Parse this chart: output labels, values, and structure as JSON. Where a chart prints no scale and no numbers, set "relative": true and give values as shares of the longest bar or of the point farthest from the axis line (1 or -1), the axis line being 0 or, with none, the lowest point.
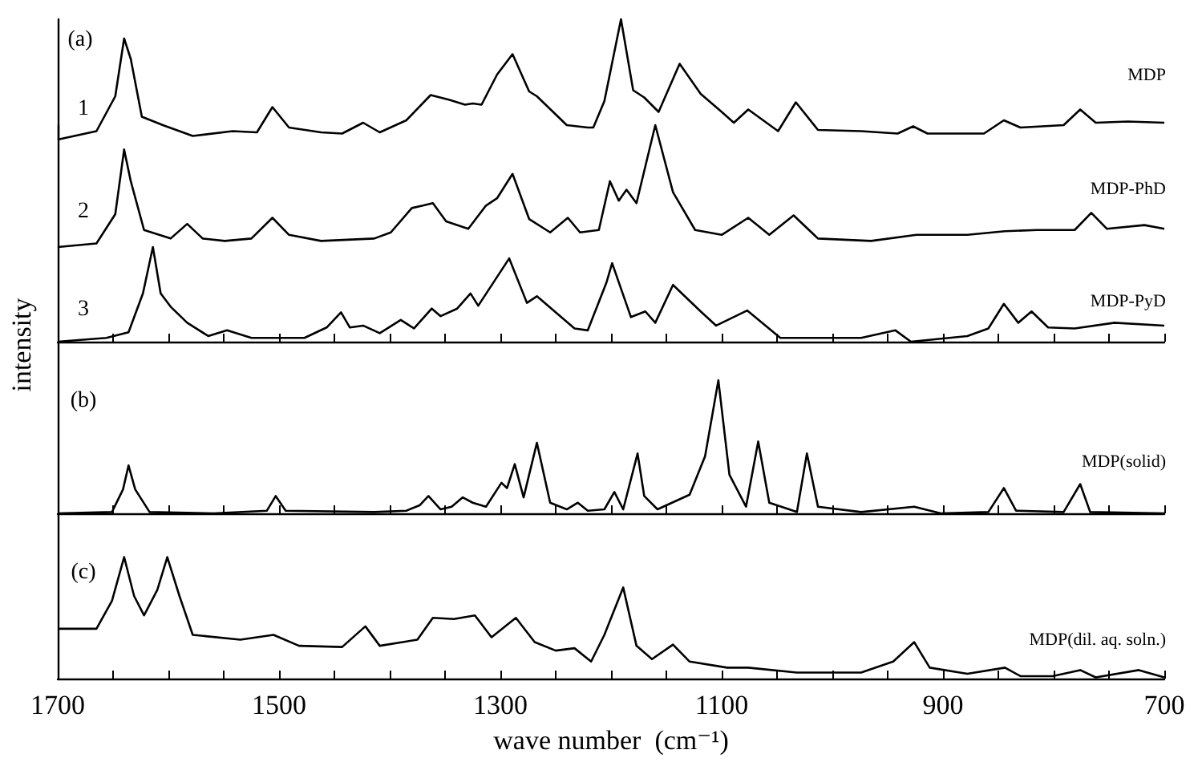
{
  "chart_data": [
    {
      "type": "line",
      "relative": true,
      "xlim": [
        1700,
        700
      ],
      "tick_labels": false,
      "annotations": [
        "(a)",
        "1"
      ],
      "series": [
        {
          "name": "MDP",
          "color": "#000000",
          "x": [
            1700,
            1665,
            1648,
            1640,
            1634,
            1624,
            1605,
            1578,
            1542,
            1520,
            1506,
            1491,
            1462,
            1443,
            1424,
            1409,
            1385,
            1363,
            1346,
            1332,
            1325,
            1317,
            1303,
            1289,
            1274,
            1267,
            1240,
            1221,
            1216,
            1206,
            1191,
            1180,
            1170,
            1157,
            1138,
            1119,
            1100,
            1089,
            1076,
            1049,
            1033,
            1013,
            974,
            941,
            927,
            914,
            863,
            845,
            830,
            791,
            776,
            762,
            733,
            700
          ],
          "values": [
            0,
            0.07,
            0.36,
            0.84,
            0.67,
            0.19,
            0.12,
            0.03,
            0.07,
            0.06,
            0.27,
            0.1,
            0.06,
            0.05,
            0.14,
            0.06,
            0.16,
            0.37,
            0.33,
            0.29,
            0.3,
            0.29,
            0.54,
            0.71,
            0.4,
            0.36,
            0.12,
            0.1,
            0.1,
            0.32,
            1,
            0.41,
            0.35,
            0.23,
            0.63,
            0.38,
            0.23,
            0.14,
            0.25,
            0.07,
            0.31,
            0.08,
            0.07,
            0.05,
            0.11,
            0.05,
            0.05,
            0.16,
            0.1,
            0.12,
            0.25,
            0.14,
            0.15,
            0.14
          ]
        }
      ]
    },
    {
      "type": "line",
      "relative": true,
      "xlim": [
        1700,
        700
      ],
      "tick_labels": false,
      "annotations": [
        "2"
      ],
      "series": [
        {
          "name": "MDP-PhD",
          "color": "#000000",
          "x": [
            1700,
            1665,
            1648,
            1640,
            1634,
            1622,
            1598,
            1583,
            1569,
            1549,
            1525,
            1506,
            1491,
            1462,
            1414,
            1399,
            1380,
            1370,
            1361,
            1349,
            1329,
            1313,
            1303,
            1289,
            1274,
            1255,
            1239,
            1228,
            1211,
            1201,
            1193,
            1186,
            1177,
            1160,
            1144,
            1124,
            1100,
            1076,
            1057,
            1035,
            1013,
            965,
            924,
            878,
            844,
            815,
            781,
            766,
            752,
            718,
            700
          ],
          "values": [
            0,
            0.03,
            0.27,
            0.8,
            0.54,
            0.14,
            0.07,
            0.19,
            0.07,
            0.05,
            0.07,
            0.24,
            0.1,
            0.05,
            0.07,
            0.12,
            0.32,
            0.34,
            0.36,
            0.21,
            0.15,
            0.34,
            0.4,
            0.6,
            0.23,
            0.12,
            0.24,
            0.12,
            0.14,
            0.54,
            0.38,
            0.47,
            0.36,
            1,
            0.45,
            0.14,
            0.1,
            0.24,
            0.1,
            0.26,
            0.07,
            0.05,
            0.1,
            0.1,
            0.13,
            0.14,
            0.14,
            0.28,
            0.15,
            0.18,
            0.15
          ]
        }
      ]
    },
    {
      "type": "line",
      "relative": true,
      "xlim": [
        1700,
        700
      ],
      "tick_labels": false,
      "annotations": [
        "3"
      ],
      "xticks": [
        1700,
        {
          "value": 1650,
          "label": null
        },
        {
          "value": 1600,
          "label": null
        },
        {
          "value": 1550,
          "label": null
        },
        {
          "value": 1500,
          "label": null
        },
        {
          "value": 1450,
          "label": null
        },
        {
          "value": 1400,
          "label": null
        },
        {
          "value": 1350,
          "label": null
        },
        {
          "value": 1300,
          "label": null
        },
        {
          "value": 1250,
          "label": null
        },
        {
          "value": 1200,
          "label": null
        },
        {
          "value": 1150,
          "label": null
        },
        {
          "value": 1100,
          "label": null
        },
        {
          "value": 1050,
          "label": null
        },
        {
          "value": 1000,
          "label": null
        },
        {
          "value": 950,
          "label": null
        },
        {
          "value": 900,
          "label": null
        },
        {
          "value": 850,
          "label": null
        },
        {
          "value": 800,
          "label": null
        },
        {
          "value": 750,
          "label": null
        },
        {
          "value": 700,
          "label": null
        }
      ],
      "series": [
        {
          "name": "MDP-PyD",
          "color": "#000000",
          "x": [
            1700,
            1656,
            1636,
            1623,
            1614,
            1607,
            1598,
            1583,
            1564,
            1547,
            1525,
            1501,
            1477,
            1457,
            1444,
            1436,
            1424,
            1409,
            1390,
            1378,
            1362,
            1354,
            1339,
            1327,
            1320,
            1292,
            1276,
            1267,
            1233,
            1221,
            1204,
            1199,
            1182,
            1169,
            1160,
            1144,
            1119,
            1105,
            1077,
            1047,
            974,
            943,
            929,
            878,
            859,
            845,
            832,
            820,
            805,
            781,
            745,
            700
          ],
          "values": [
            0,
            0.04,
            0.1,
            0.51,
            1,
            0.51,
            0.37,
            0.2,
            0.06,
            0.12,
            0.04,
            0.04,
            0.04,
            0.15,
            0.31,
            0.15,
            0.17,
            0.09,
            0.23,
            0.14,
            0.35,
            0.27,
            0.35,
            0.51,
            0.38,
            0.88,
            0.41,
            0.48,
            0.14,
            0.12,
            0.63,
            0.83,
            0.26,
            0.32,
            0.2,
            0.6,
            0.32,
            0.17,
            0.33,
            0.04,
            0.04,
            0.12,
            0,
            0.06,
            0.14,
            0.4,
            0.2,
            0.32,
            0.15,
            0.14,
            0.2,
            0.17
          ]
        }
      ]
    },
    {
      "type": "line",
      "relative": true,
      "xlim": [
        1700,
        700
      ],
      "tick_labels": false,
      "annotations": [
        "(b)"
      ],
      "ylabel": "intensity",
      "xticks": [
        {
          "value": 1700,
          "label": null
        },
        {
          "value": 1650,
          "label": null
        },
        {
          "value": 1600,
          "label": null
        },
        {
          "value": 1550,
          "label": null
        },
        {
          "value": 1500,
          "label": null
        },
        {
          "value": 1450,
          "label": null
        },
        {
          "value": 1400,
          "label": null
        },
        {
          "value": 1350,
          "label": null
        },
        {
          "value": 1300,
          "label": null
        },
        {
          "value": 1250,
          "label": null
        },
        {
          "value": 1200,
          "label": null
        },
        {
          "value": 1150,
          "label": null
        },
        {
          "value": 1100,
          "label": null
        },
        {
          "value": 1050,
          "label": null
        },
        {
          "value": 1000,
          "label": null
        },
        {
          "value": 950,
          "label": null
        },
        {
          "value": 900,
          "label": null
        },
        {
          "value": 850,
          "label": null
        },
        {
          "value": 800,
          "label": null
        },
        {
          "value": 750,
          "label": null
        },
        {
          "value": 700,
          "label": null
        }
      ],
      "series": [
        {
          "name": "MDP(solid)",
          "color": "#000000",
          "x": [
            1700,
            1651,
            1641,
            1636,
            1630,
            1617,
            1559,
            1511,
            1503,
            1494,
            1414,
            1385,
            1373,
            1365,
            1354,
            1344,
            1334,
            1325,
            1313,
            1299,
            1294,
            1287,
            1279,
            1267,
            1255,
            1240,
            1230,
            1221,
            1206,
            1197,
            1189,
            1176,
            1170,
            1158,
            1129,
            1115,
            1103,
            1093,
            1078,
            1067,
            1057,
            1032,
            1023,
            1013,
            974,
            926,
            902,
            859,
            845,
            834,
            791,
            776,
            767,
            700
          ],
          "values": [
            0,
            0.01,
            0.18,
            0.36,
            0.18,
            0.01,
            0,
            0.02,
            0.13,
            0.02,
            0.01,
            0.02,
            0.06,
            0.13,
            0.03,
            0.05,
            0.12,
            0.08,
            0.05,
            0.23,
            0.19,
            0.37,
            0.12,
            0.53,
            0.08,
            0.03,
            0.08,
            0.02,
            0.03,
            0.16,
            0.03,
            0.45,
            0.13,
            0.03,
            0.14,
            0.43,
            1,
            0.29,
            0.05,
            0.54,
            0.08,
            0.01,
            0.45,
            0.05,
            0.01,
            0.05,
            0,
            0.01,
            0.19,
            0.02,
            0.01,
            0.22,
            0.01,
            0
          ]
        }
      ]
    },
    {
      "type": "line",
      "relative": true,
      "xlim": [
        1700,
        700
      ],
      "tick_labels": "x",
      "annotations": [
        "(c)"
      ],
      "xlabel": "wave number  (cm⁻¹)",
      "xticks": [
        1700,
        {
          "value": 1650,
          "label": null
        },
        {
          "value": 1600,
          "label": null
        },
        {
          "value": 1550,
          "label": null
        },
        1500,
        {
          "value": 1450,
          "label": null
        },
        {
          "value": 1400,
          "label": null
        },
        {
          "value": 1350,
          "label": null
        },
        1300,
        {
          "value": 1250,
          "label": null
        },
        {
          "value": 1200,
          "label": null
        },
        {
          "value": 1150,
          "label": null
        },
        1100,
        {
          "value": 1050,
          "label": null
        },
        {
          "value": 1000,
          "label": null
        },
        {
          "value": 950,
          "label": null
        },
        900,
        {
          "value": 850,
          "label": null
        },
        {
          "value": 800,
          "label": null
        },
        {
          "value": 750,
          "label": null
        },
        700
      ],
      "series": [
        {
          "name": "MDP(dil. aq. soln.)",
          "color": "#000000",
          "x": [
            1700,
            1665,
            1651,
            1640,
            1631,
            1622,
            1610,
            1601,
            1590,
            1578,
            1535,
            1505,
            1482,
            1443,
            1422,
            1409,
            1375,
            1361,
            1342,
            1323,
            1308,
            1286,
            1269,
            1250,
            1233,
            1218,
            1206,
            1189,
            1177,
            1163,
            1144,
            1129,
            1095,
            1076,
            1032,
            974,
            945,
            926,
            912,
            878,
            844,
            830,
            801,
            776,
            762,
            723,
            700
          ],
          "values": [
            0.41,
            0.41,
            0.64,
            1,
            0.68,
            0.52,
            0.73,
            1,
            0.68,
            0.36,
            0.32,
            0.36,
            0.27,
            0.26,
            0.43,
            0.27,
            0.32,
            0.5,
            0.49,
            0.52,
            0.34,
            0.5,
            0.3,
            0.23,
            0.25,
            0.14,
            0.36,
            0.75,
            0.27,
            0.16,
            0.28,
            0.14,
            0.09,
            0.09,
            0.05,
            0.05,
            0.14,
            0.3,
            0.09,
            0.04,
            0.09,
            0.02,
            0.02,
            0.07,
            0.01,
            0.07,
            0.01
          ]
        }
      ]
    }
  ]
}
